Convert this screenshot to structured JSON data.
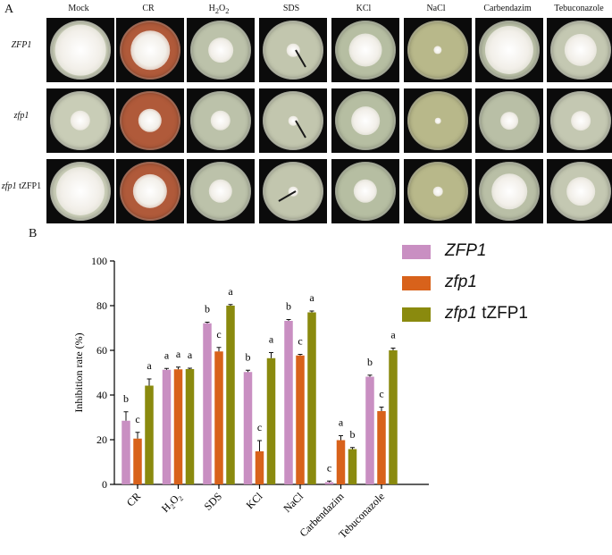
{
  "panel_labels": {
    "a": "A",
    "b": "B"
  },
  "columns": [
    {
      "id": "mock",
      "label": "Mock",
      "sub": ""
    },
    {
      "id": "cr",
      "label": "CR",
      "sub": ""
    },
    {
      "id": "h2o2",
      "label": "H",
      "sub": "2",
      "label2": "O",
      "sub2": "2"
    },
    {
      "id": "sds",
      "label": "SDS",
      "sub": ""
    },
    {
      "id": "kcl",
      "label": "KCl",
      "sub": ""
    },
    {
      "id": "nacl",
      "label": "NaCl",
      "sub": ""
    },
    {
      "id": "carbendazim",
      "label": "Carbendazim",
      "sub": ""
    },
    {
      "id": "tebuconazole",
      "label": "Tebuconazole",
      "sub": ""
    }
  ],
  "rows": [
    {
      "id": "zfp1-wt",
      "label": "ZFP1",
      "label_suffix": ""
    },
    {
      "id": "zfp1-mut",
      "label": "zfp1",
      "label_suffix": ""
    },
    {
      "id": "zfp1-comp",
      "label": "zfp1",
      "label_suffix": " tZFP1"
    }
  ],
  "plate_colors": {
    "mock": "#c9cdb7",
    "cr": "#b05a3a",
    "h2o2": "#bcc2aa",
    "sds": "#c2c6ae",
    "kcl": "#b6bea2",
    "nacl": "#b8b88a",
    "carbendazim": "#b9bfa6",
    "tebuconazole": "#c4c8b2",
    "colony": "#f2efe9"
  },
  "colony_sizes": [
    [
      0.86,
      0.66,
      0.42,
      0.22,
      0.56,
      0.14,
      0.82,
      0.55
    ],
    [
      0.34,
      0.4,
      0.34,
      0.16,
      0.48,
      0.1,
      0.3,
      0.33
    ],
    [
      0.82,
      0.58,
      0.4,
      0.16,
      0.4,
      0.16,
      0.6,
      0.48
    ]
  ],
  "chart_data": {
    "type": "bar",
    "categories": [
      "CR",
      "H2O2",
      "SDS",
      "KCl",
      "NaCl",
      "Carbendazim",
      "Tebuconazole"
    ],
    "category_labels": [
      {
        "text": "CR"
      },
      {
        "text": "H",
        "sub": "2",
        "text2": "O",
        "sub2": "2"
      },
      {
        "text": "SDS"
      },
      {
        "text": "KCl"
      },
      {
        "text": "NaCl"
      },
      {
        "text": "Carbendazim"
      },
      {
        "text": "Tebuconazole"
      }
    ],
    "ylabel": "Inhibition rate (%)",
    "ylim": [
      0,
      100
    ],
    "yticks": [
      0,
      20,
      40,
      60,
      80,
      100
    ],
    "series": [
      {
        "name": "ZFP1",
        "name_suffix": "",
        "color": "#c98fc2",
        "values": [
          28.5,
          51.3,
          72.1,
          50.3,
          73.2,
          1.0,
          48.2
        ],
        "errors": [
          4.0,
          0.6,
          0.5,
          0.8,
          0.6,
          0.5,
          0.7
        ],
        "letters": [
          "b",
          "a",
          "b",
          "b",
          "b",
          "c",
          "b"
        ]
      },
      {
        "name": "zfp1",
        "name_suffix": "",
        "color": "#d8621b",
        "values": [
          20.5,
          51.5,
          59.5,
          14.8,
          57.7,
          19.8,
          32.8
        ],
        "errors": [
          2.8,
          1.0,
          1.8,
          4.8,
          0.5,
          2.0,
          1.8
        ],
        "letters": [
          "c",
          "a",
          "c",
          "c",
          "c",
          "a",
          "c"
        ]
      },
      {
        "name": "zfp1",
        "name_suffix": " tZFP1",
        "color": "#8a8a0e",
        "values": [
          44.2,
          51.6,
          80.0,
          56.5,
          77.0,
          15.8,
          60.0
        ],
        "errors": [
          3.0,
          0.4,
          0.5,
          2.5,
          0.6,
          0.7,
          1.0
        ],
        "letters": [
          "a",
          "a",
          "a",
          "a",
          "a",
          "b",
          "a"
        ]
      }
    ],
    "legend_position": "top-right"
  }
}
